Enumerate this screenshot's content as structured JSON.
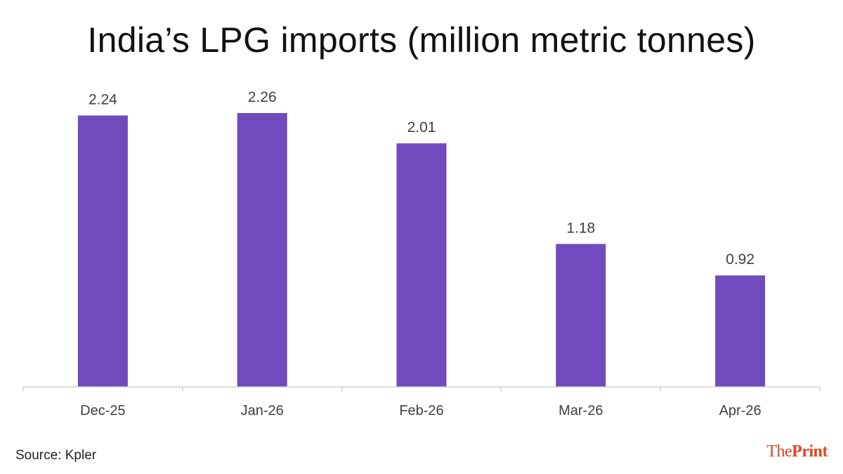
{
  "chart_data": {
    "type": "bar",
    "title": "India’s LPG imports (million metric tonnes)",
    "categories": [
      "Dec-25",
      "Jan-26",
      "Feb-26",
      "Mar-26",
      "Apr-26"
    ],
    "values": [
      2.24,
      2.26,
      2.01,
      1.18,
      0.92
    ],
    "data_labels": [
      "2.24",
      "2.26",
      "2.01",
      "1.18",
      "0.92"
    ],
    "ylim": [
      0,
      2.26
    ],
    "grid": false,
    "legend": "none",
    "bar_color": "#714bbd",
    "axis_color": "#d0d0d0",
    "label_color": "#404040"
  },
  "footer": {
    "source": "Source: Kpler",
    "logo_the": "The",
    "logo_print": "Print",
    "logo_color": "#e0451f"
  }
}
